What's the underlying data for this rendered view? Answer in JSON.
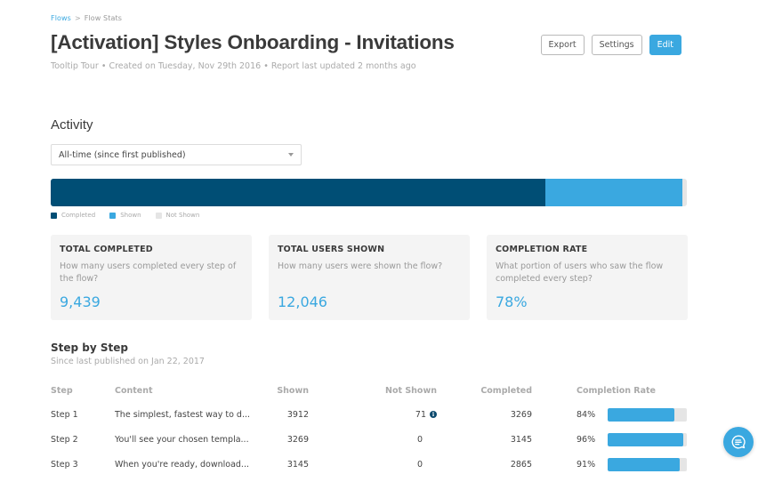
{
  "breadcrumb": {
    "items": [
      "Flows",
      "Flow Stats"
    ],
    "separator": ">"
  },
  "header": {
    "title": "[Activation] Styles Onboarding - Invitations",
    "subtitle": "Tooltip Tour •  Created on Tuesday, Nov 29th 2016 • Report last updated 2 months ago",
    "buttons": {
      "export": "Export",
      "settings": "Settings",
      "edit": "Edit"
    }
  },
  "activity": {
    "title": "Activity",
    "range_select": {
      "value": "All-time (since first published)"
    },
    "legend": [
      {
        "label": "Completed",
        "color": "#004e75"
      },
      {
        "label": "Shown",
        "color": "#3aa8e0"
      },
      {
        "label": "Not Shown",
        "color": "#e5e5e5"
      }
    ]
  },
  "stats": [
    {
      "title": "TOTAL COMPLETED",
      "description": "How many users completed every step of the flow?",
      "value": "9,439"
    },
    {
      "title": "TOTAL USERS SHOWN",
      "description": "How many users were shown the flow?",
      "value": "12,046"
    },
    {
      "title": "COMPLETION RATE",
      "description": "What portion of users who saw the flow completed every step?",
      "value": "78%"
    }
  ],
  "step_by_step": {
    "title": "Step by Step",
    "subtitle": "Since last published on Jan 22, 2017",
    "columns": [
      "Step",
      "Content",
      "Shown",
      "Not Shown",
      "Completed",
      "Completion Rate"
    ],
    "rows": [
      {
        "step": "Step 1",
        "content": "The simplest, fastest way to d...",
        "shown": "3912",
        "not_shown": "71",
        "has_info": true,
        "completed": "3269",
        "rate": "84%",
        "rate_value": 84
      },
      {
        "step": "Step 2",
        "content": "You'll see your chosen templa...",
        "shown": "3269",
        "not_shown": "0",
        "has_info": false,
        "completed": "3145",
        "rate": "96%",
        "rate_value": 96
      },
      {
        "step": "Step 3",
        "content": "When you're ready, download...",
        "shown": "3145",
        "not_shown": "0",
        "has_info": false,
        "completed": "2865",
        "rate": "91%",
        "rate_value": 91
      }
    ]
  },
  "colors": {
    "accent": "#3aa8e0",
    "completed": "#004e75",
    "not_shown": "#e5e5e5",
    "card_bg": "#f4f4f4"
  },
  "chat_button": {
    "icon": "chat-bubble-icon"
  }
}
